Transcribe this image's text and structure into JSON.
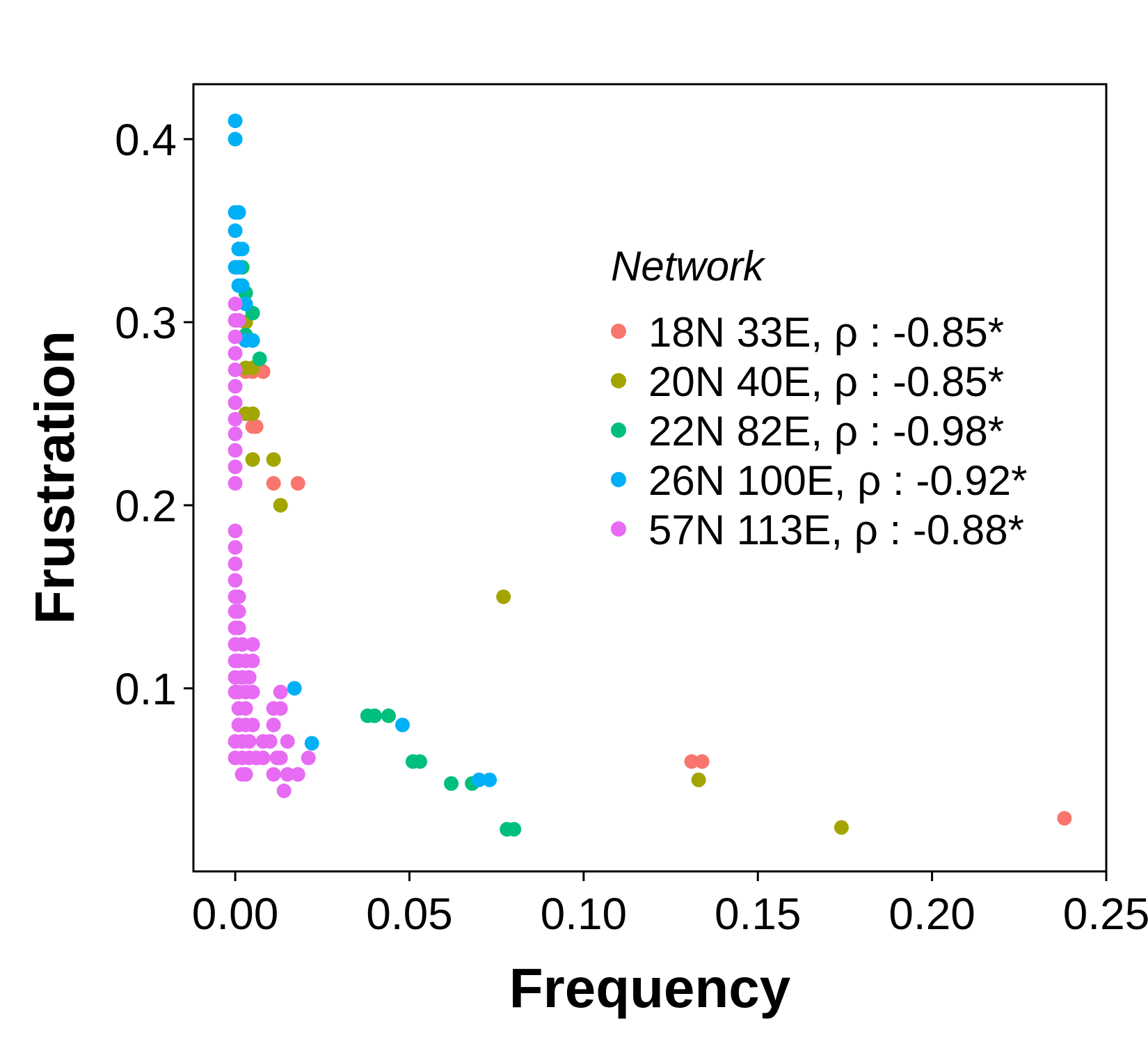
{
  "chart_data": {
    "type": "scatter",
    "xlabel": "Frequency",
    "ylabel": "Frustration",
    "xlim": [
      -0.012,
      0.25
    ],
    "ylim": [
      0.0,
      0.43
    ],
    "xticks": [
      "0.00",
      "0.05",
      "0.10",
      "0.15",
      "0.20",
      "0.25"
    ],
    "yticks": [
      "0.1",
      "0.2",
      "0.3",
      "0.4"
    ],
    "grid": false,
    "legend": {
      "title": "Network",
      "position": "right-inside"
    },
    "series": [
      {
        "name": "18N 33E, ρ : -0.85*",
        "color": "#F8766D",
        "points": [
          [
            0.003,
            0.3
          ],
          [
            0.003,
            0.273
          ],
          [
            0.005,
            0.273
          ],
          [
            0.008,
            0.273
          ],
          [
            0.005,
            0.243
          ],
          [
            0.006,
            0.243
          ],
          [
            0.011,
            0.212
          ],
          [
            0.018,
            0.212
          ],
          [
            0.131,
            0.06
          ],
          [
            0.134,
            0.06
          ],
          [
            0.238,
            0.029
          ]
        ]
      },
      {
        "name": "20N 40E, ρ : -0.85*",
        "color": "#A3A500",
        "points": [
          [
            0.003,
            0.3
          ],
          [
            0.003,
            0.275
          ],
          [
            0.005,
            0.275
          ],
          [
            0.003,
            0.25
          ],
          [
            0.005,
            0.25
          ],
          [
            0.005,
            0.225
          ],
          [
            0.011,
            0.225
          ],
          [
            0.013,
            0.2
          ],
          [
            0.077,
            0.15
          ],
          [
            0.133,
            0.05
          ],
          [
            0.174,
            0.024
          ]
        ]
      },
      {
        "name": "22N 82E, ρ : -0.98*",
        "color": "#00BF7D",
        "points": [
          [
            0.001,
            0.34
          ],
          [
            0.002,
            0.33
          ],
          [
            0.003,
            0.316
          ],
          [
            0.005,
            0.305
          ],
          [
            0.003,
            0.293
          ],
          [
            0.007,
            0.28
          ],
          [
            0.038,
            0.085
          ],
          [
            0.04,
            0.085
          ],
          [
            0.044,
            0.085
          ],
          [
            0.051,
            0.06
          ],
          [
            0.053,
            0.06
          ],
          [
            0.062,
            0.048
          ],
          [
            0.068,
            0.048
          ],
          [
            0.078,
            0.023
          ],
          [
            0.08,
            0.023
          ]
        ]
      },
      {
        "name": "26N 100E, ρ : -0.92*",
        "color": "#00B0F6",
        "points": [
          [
            0.0,
            0.41
          ],
          [
            0.0,
            0.4
          ],
          [
            0.0,
            0.36
          ],
          [
            0.001,
            0.36
          ],
          [
            0.0,
            0.35
          ],
          [
            0.001,
            0.34
          ],
          [
            0.002,
            0.34
          ],
          [
            0.0,
            0.33
          ],
          [
            0.001,
            0.33
          ],
          [
            0.001,
            0.32
          ],
          [
            0.002,
            0.32
          ],
          [
            0.003,
            0.31
          ],
          [
            0.003,
            0.29
          ],
          [
            0.005,
            0.29
          ],
          [
            0.017,
            0.1
          ],
          [
            0.022,
            0.07
          ],
          [
            0.048,
            0.08
          ],
          [
            0.07,
            0.05
          ],
          [
            0.073,
            0.05
          ]
        ]
      },
      {
        "name": "57N 113E, ρ : -0.88*",
        "color": "#E76BF3",
        "points": [
          [
            0.0,
            0.31
          ],
          [
            0.0,
            0.301
          ],
          [
            0.001,
            0.301
          ],
          [
            0.0,
            0.292
          ],
          [
            0.0,
            0.283
          ],
          [
            0.0,
            0.274
          ],
          [
            0.0,
            0.265
          ],
          [
            0.0,
            0.256
          ],
          [
            0.0,
            0.247
          ],
          [
            0.0,
            0.239
          ],
          [
            0.0,
            0.23
          ],
          [
            0.0,
            0.221
          ],
          [
            0.0,
            0.212
          ],
          [
            0.0,
            0.186
          ],
          [
            0.0,
            0.177
          ],
          [
            0.0,
            0.168
          ],
          [
            0.0,
            0.159
          ],
          [
            0.0,
            0.15
          ],
          [
            0.001,
            0.15
          ],
          [
            0.0,
            0.142
          ],
          [
            0.001,
            0.142
          ],
          [
            0.0,
            0.133
          ],
          [
            0.001,
            0.133
          ],
          [
            0.0,
            0.124
          ],
          [
            0.002,
            0.124
          ],
          [
            0.005,
            0.124
          ],
          [
            0.0,
            0.115
          ],
          [
            0.001,
            0.115
          ],
          [
            0.003,
            0.115
          ],
          [
            0.005,
            0.115
          ],
          [
            0.0,
            0.106
          ],
          [
            0.002,
            0.106
          ],
          [
            0.004,
            0.106
          ],
          [
            0.0,
            0.098
          ],
          [
            0.001,
            0.098
          ],
          [
            0.003,
            0.098
          ],
          [
            0.005,
            0.098
          ],
          [
            0.013,
            0.098
          ],
          [
            0.001,
            0.089
          ],
          [
            0.003,
            0.089
          ],
          [
            0.011,
            0.089
          ],
          [
            0.013,
            0.089
          ],
          [
            0.001,
            0.08
          ],
          [
            0.003,
            0.08
          ],
          [
            0.005,
            0.08
          ],
          [
            0.011,
            0.08
          ],
          [
            0.0,
            0.071
          ],
          [
            0.002,
            0.071
          ],
          [
            0.004,
            0.071
          ],
          [
            0.008,
            0.071
          ],
          [
            0.01,
            0.071
          ],
          [
            0.015,
            0.071
          ],
          [
            0.0,
            0.062
          ],
          [
            0.002,
            0.062
          ],
          [
            0.004,
            0.062
          ],
          [
            0.006,
            0.062
          ],
          [
            0.008,
            0.062
          ],
          [
            0.012,
            0.062
          ],
          [
            0.013,
            0.062
          ],
          [
            0.021,
            0.062
          ],
          [
            0.002,
            0.053
          ],
          [
            0.003,
            0.053
          ],
          [
            0.011,
            0.053
          ],
          [
            0.015,
            0.053
          ],
          [
            0.018,
            0.053
          ],
          [
            0.014,
            0.044
          ]
        ]
      }
    ]
  }
}
